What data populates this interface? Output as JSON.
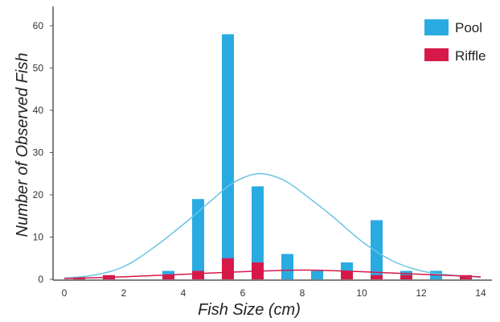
{
  "chart_data": {
    "type": "bar",
    "title": "",
    "xlabel": "Fish Size (cm)",
    "ylabel": "Number of Observed Fish",
    "xlim": [
      0,
      14
    ],
    "ylim": [
      0,
      60
    ],
    "x_ticks": [
      "0",
      "2",
      "4",
      "6",
      "8",
      "10",
      "12",
      "14"
    ],
    "y_ticks": [
      "0",
      "10",
      "20",
      "30",
      "40",
      "50",
      "60"
    ],
    "grid": false,
    "legend_position": "top-right",
    "series": [
      {
        "name": "Pool",
        "color": "#29abe2",
        "x": [
          3.5,
          4.5,
          5.5,
          6.5,
          7.5,
          8.5,
          9.5,
          10.5,
          11.5,
          12.5
        ],
        "values": [
          2,
          19,
          58,
          22,
          6,
          2,
          4,
          14,
          2,
          2
        ]
      },
      {
        "name": "Riffle",
        "color": "#d7194a",
        "x": [
          0.5,
          1.5,
          3.5,
          4.5,
          5.5,
          6.5,
          9.5,
          10.5,
          11.5,
          13.5
        ],
        "values": [
          0.5,
          1,
          1,
          2,
          5,
          4,
          2,
          1,
          1,
          1
        ]
      }
    ],
    "curves": [
      {
        "series": "Pool",
        "color": "#6cc4e4",
        "x": [
          0,
          1,
          2,
          3,
          4,
          5,
          5.5,
          6,
          6.5,
          7,
          7.5,
          8,
          9,
          10,
          11,
          12,
          13,
          14
        ],
        "values": [
          0.3,
          1,
          3,
          7.5,
          13,
          19,
          22,
          24,
          25,
          24.5,
          23,
          20.5,
          15,
          9,
          4.5,
          2,
          1,
          0.5
        ]
      },
      {
        "series": "Riffle",
        "color": "#d7194a",
        "x": [
          0,
          2,
          4,
          6,
          8,
          10,
          12,
          14
        ],
        "values": [
          0.2,
          0.6,
          1.2,
          1.8,
          2.2,
          1.8,
          1.2,
          0.6
        ]
      }
    ]
  }
}
